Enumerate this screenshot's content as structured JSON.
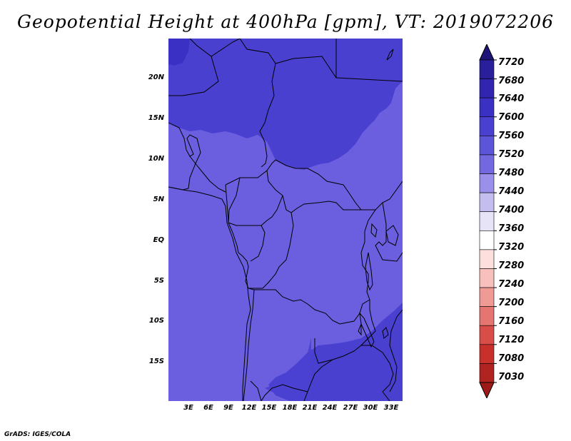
{
  "title": "Geopotential Height at 400hPa [gpm], VT: 2019072206",
  "credit": "GrADS: IGES/COLA",
  "map": {
    "lat_labels": [
      "20N",
      "15N",
      "10N",
      "5N",
      "EQ",
      "5S",
      "10S",
      "15S"
    ],
    "lon_labels": [
      "3E",
      "6E",
      "9E",
      "12E",
      "15E",
      "18E",
      "21E",
      "24E",
      "27E",
      "30E",
      "33E"
    ]
  },
  "colorbar": {
    "levels": [
      "7720",
      "7680",
      "7640",
      "7600",
      "7560",
      "7520",
      "7480",
      "7440",
      "7400",
      "7360",
      "7320",
      "7280",
      "7240",
      "7200",
      "7160",
      "7120",
      "7080",
      "7030"
    ],
    "colors": [
      "#1e1478",
      "#2a1f9a",
      "#3024b0",
      "#3a30c4",
      "#4a40d0",
      "#5d55d8",
      "#7468e0",
      "#9a90ea",
      "#c4beef",
      "#e6e4f6",
      "#ffffff",
      "#fde0de",
      "#f8c0bd",
      "#f09a95",
      "#e57570",
      "#d84d48",
      "#c8302c",
      "#b02320",
      "#9e1a18"
    ],
    "arrow_top_color": "#1e1478",
    "arrow_bottom_color": "#9e1a18"
  },
  "field_colors": {
    "level_7560_7600": "#3a30c4",
    "level_7520_7560": "#4a40d0",
    "level_7480_7520": "#6b5fe0",
    "level_7640_7680": "#2a1f9a"
  }
}
